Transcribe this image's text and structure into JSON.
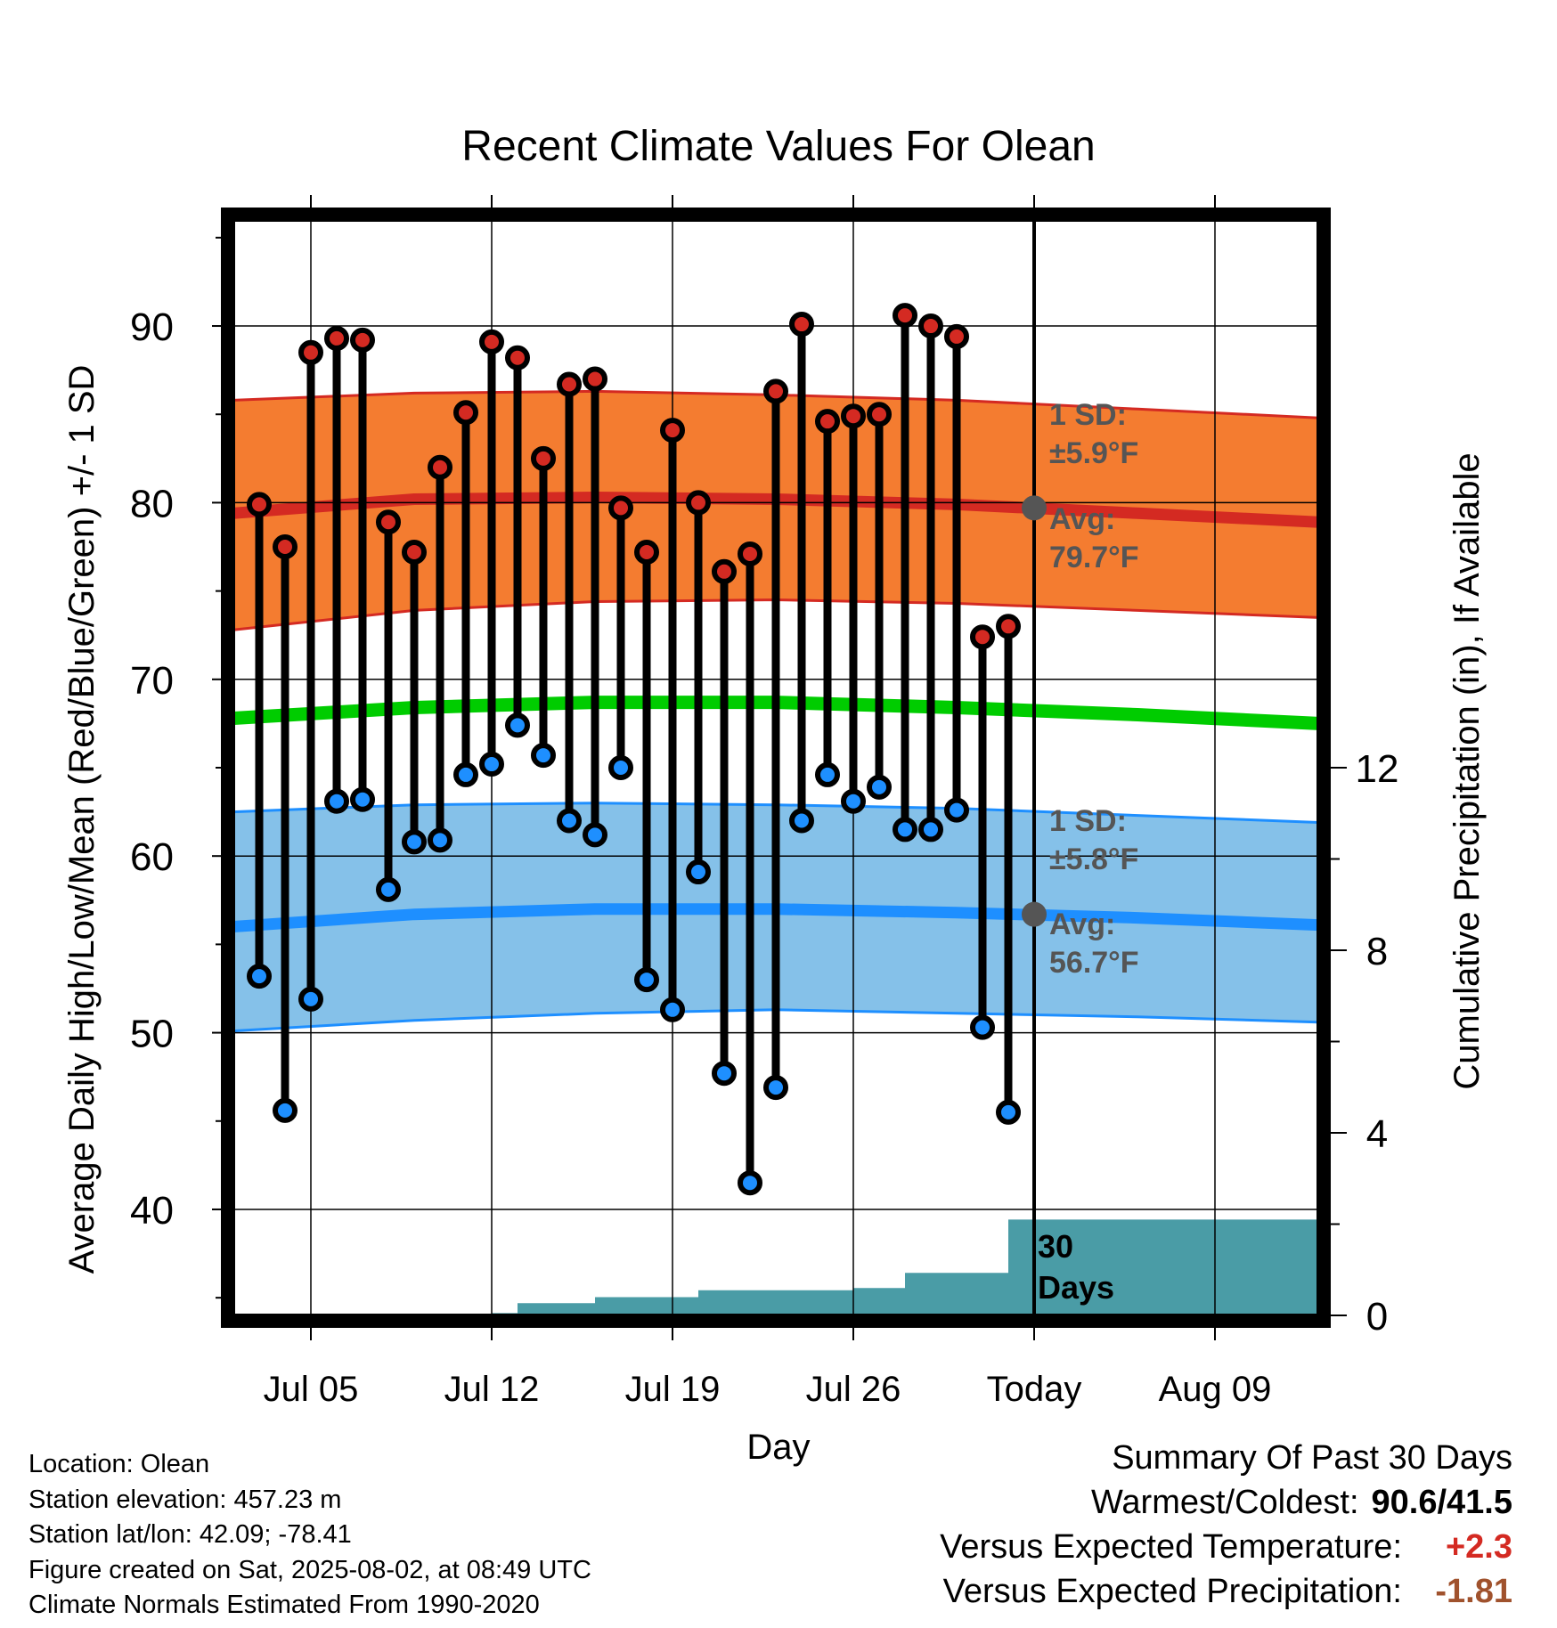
{
  "chart_data": {
    "type": "line",
    "title": "Recent Climate Values For Olean",
    "xlabel": "Day",
    "ylabel": "Average Daily High/Low/Mean (Red/Blue/Green) +/- 1 SD",
    "y2label": "Cumulative Precipitation (in), If Available",
    "x_range": [
      "2025-07-02",
      "2025-08-13"
    ],
    "x_ticks": [
      {
        "date": "2025-07-05",
        "label": "Jul 05"
      },
      {
        "date": "2025-07-12",
        "label": "Jul 12"
      },
      {
        "date": "2025-07-19",
        "label": "Jul 19"
      },
      {
        "date": "2025-07-26",
        "label": "Jul 26"
      },
      {
        "date": "2025-08-02",
        "label": "Today"
      },
      {
        "date": "2025-08-09",
        "label": "Aug 09"
      }
    ],
    "ylim": [
      34,
      96
    ],
    "y_ticks": [
      40,
      50,
      60,
      70,
      80,
      90
    ],
    "y2lim": [
      0,
      24
    ],
    "y2_ticks": [
      0,
      4,
      8,
      12
    ],
    "grid": true,
    "today": "2025-08-02",
    "observed": {
      "dates": [
        "2025-07-03",
        "2025-07-04",
        "2025-07-05",
        "2025-07-06",
        "2025-07-07",
        "2025-07-08",
        "2025-07-09",
        "2025-07-10",
        "2025-07-11",
        "2025-07-12",
        "2025-07-13",
        "2025-07-14",
        "2025-07-15",
        "2025-07-16",
        "2025-07-17",
        "2025-07-18",
        "2025-07-19",
        "2025-07-20",
        "2025-07-21",
        "2025-07-22",
        "2025-07-23",
        "2025-07-24",
        "2025-07-25",
        "2025-07-26",
        "2025-07-27",
        "2025-07-28",
        "2025-07-29",
        "2025-07-30",
        "2025-07-31",
        "2025-08-01"
      ],
      "high": [
        79.9,
        77.5,
        88.5,
        89.3,
        89.2,
        78.9,
        77.2,
        82.0,
        85.1,
        89.1,
        88.2,
        82.5,
        86.7,
        87.0,
        79.7,
        77.2,
        84.1,
        80.0,
        76.1,
        77.1,
        86.3,
        90.1,
        84.6,
        84.9,
        85.0,
        90.6,
        90.0,
        89.4,
        72.4,
        73.0
      ],
      "low": [
        53.2,
        45.6,
        51.9,
        63.1,
        63.2,
        58.1,
        60.8,
        60.9,
        64.6,
        65.2,
        67.4,
        65.7,
        62.0,
        61.2,
        65.0,
        53.0,
        51.3,
        59.1,
        47.7,
        41.5,
        46.9,
        62.0,
        64.6,
        63.1,
        63.9,
        61.5,
        61.5,
        62.6,
        50.3,
        45.5
      ]
    },
    "normals": {
      "dates": [
        "2025-07-02",
        "2025-07-09",
        "2025-07-16",
        "2025-07-23",
        "2025-07-30",
        "2025-08-06",
        "2025-08-13"
      ],
      "high_mean": [
        79.4,
        80.2,
        80.3,
        80.2,
        79.9,
        79.4,
        78.9
      ],
      "high_sd_upper": [
        85.8,
        86.2,
        86.3,
        86.1,
        85.8,
        85.3,
        84.8
      ],
      "high_sd_lower": [
        72.8,
        73.9,
        74.4,
        74.5,
        74.3,
        73.9,
        73.5
      ],
      "mean": [
        67.8,
        68.4,
        68.7,
        68.7,
        68.4,
        68.0,
        67.5
      ],
      "low_mean": [
        56.0,
        56.7,
        57.0,
        57.0,
        56.8,
        56.5,
        56.1
      ],
      "low_sd_upper": [
        62.5,
        62.9,
        63.0,
        62.9,
        62.7,
        62.3,
        61.9
      ],
      "low_sd_lower": [
        50.1,
        50.7,
        51.1,
        51.3,
        51.1,
        50.9,
        50.6
      ]
    },
    "precip_cumulative": {
      "dates": [
        "2025-07-02",
        "2025-07-05",
        "2025-07-08",
        "2025-07-09",
        "2025-07-10",
        "2025-07-11",
        "2025-07-12",
        "2025-07-13",
        "2025-07-14",
        "2025-07-15",
        "2025-07-16",
        "2025-07-17",
        "2025-07-18",
        "2025-07-19",
        "2025-07-20",
        "2025-07-21",
        "2025-07-22",
        "2025-07-23",
        "2025-07-24",
        "2025-07-25",
        "2025-07-26",
        "2025-07-27",
        "2025-07-28",
        "2025-07-29",
        "2025-07-30",
        "2025-07-31",
        "2025-08-01",
        "2025-08-13"
      ],
      "values": [
        0.0,
        0.0,
        0.03,
        0.03,
        0.03,
        0.03,
        0.05,
        0.27,
        0.27,
        0.27,
        0.4,
        0.4,
        0.4,
        0.4,
        0.55,
        0.55,
        0.55,
        0.55,
        0.55,
        0.55,
        0.6,
        0.6,
        0.93,
        0.93,
        0.93,
        0.93,
        2.1,
        2.1
      ]
    },
    "annotations": {
      "high_sd": "1 SD:",
      "high_sd_value": "±5.9°F",
      "high_avg": "Avg:",
      "high_avg_value": "79.7°F",
      "high_avg_number": 79.7,
      "low_sd": "1 SD:",
      "low_sd_value": "±5.8°F",
      "low_avg": "Avg:",
      "low_avg_value": "56.7°F",
      "low_avg_number": 56.7,
      "precip_days_line1": "30",
      "precip_days_line2": "Days"
    },
    "colors": {
      "high_band": "#f47c30",
      "high_line": "#d42a22",
      "mean_line": "#00cc00",
      "low_band": "#85c1e9",
      "low_line": "#1e8fff",
      "precip": "#4a9ca6",
      "high_marker": "#d42a22",
      "low_marker": "#1e8fff",
      "avg_marker": "#555555"
    }
  },
  "footer": {
    "location": "Location: Olean",
    "elevation": "Station elevation: 457.23 m",
    "latlon": "Station lat/lon: 42.09; -78.41",
    "created": "Figure created on Sat, 2025-08-02, at 08:49 UTC",
    "normals_period": "Climate Normals Estimated From 1990-2020"
  },
  "summary": {
    "title": "Summary Of Past 30 Days",
    "warmest_label": "Warmest/Coldest:",
    "warmest_value": "90.6/41.5",
    "temp_label": "Versus Expected Temperature:",
    "temp_value": "+2.3",
    "temp_color": "#d42a22",
    "precip_label": "Versus Expected Precipitation:",
    "precip_value": "-1.81",
    "precip_color": "#a0522d"
  }
}
